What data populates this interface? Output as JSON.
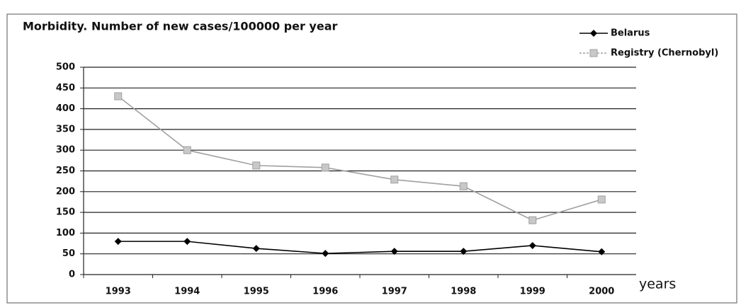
{
  "chart_data": {
    "type": "line",
    "title": "Morbidity. Number of new cases/100000 per year",
    "x_label": "years",
    "categories": [
      "1993",
      "1994",
      "1995",
      "1996",
      "1997",
      "1998",
      "1999",
      "2000"
    ],
    "series": [
      {
        "name": "Belarus",
        "color": "#000000",
        "marker": "diamond",
        "values": [
          80,
          80,
          63,
          51,
          56,
          56,
          70,
          55
        ]
      },
      {
        "name": "Registry (Chernobyl)",
        "color": "#a0a0a0",
        "marker": "square",
        "values": [
          430,
          300,
          263,
          258,
          229,
          213,
          131,
          181
        ]
      }
    ],
    "ylim": [
      0,
      500
    ],
    "yticks": [
      0,
      50,
      100,
      150,
      200,
      250,
      300,
      350,
      400,
      450,
      500
    ],
    "grid": true,
    "legend": "upper right"
  }
}
